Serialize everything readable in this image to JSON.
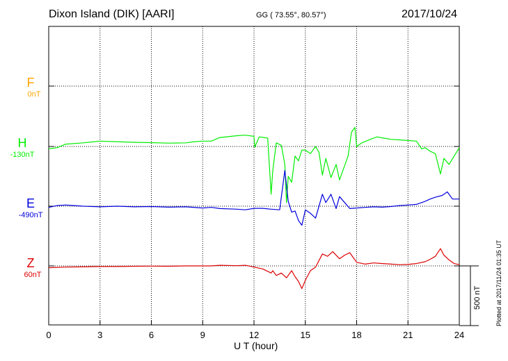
{
  "header": {
    "station": "Dixon Island (DIK)  [AARI]",
    "coords": "GG ( 73.55°,  80.57°)",
    "date": "2017/10/24"
  },
  "footer": "Plotted at 2017/11/24 01:35 UT",
  "chart_data": {
    "type": "line",
    "xlabel": "U T (hour)",
    "xlim": [
      0,
      24
    ],
    "xticks": [
      "0",
      "3",
      "6",
      "9",
      "12",
      "15",
      "18",
      "21",
      "24"
    ],
    "scale_bar_label": "500 nT",
    "grid": true,
    "series": [
      {
        "name": "F",
        "baseline": "0nT",
        "color": "#ffa500",
        "points": []
      },
      {
        "name": "H",
        "baseline": "-130nT",
        "color": "#00ee00",
        "points": [
          [
            0,
            -20
          ],
          [
            0.5,
            -10
          ],
          [
            1,
            20
          ],
          [
            2,
            30
          ],
          [
            3,
            45
          ],
          [
            4,
            40
          ],
          [
            5,
            35
          ],
          [
            6,
            32
          ],
          [
            7,
            28
          ],
          [
            8,
            30
          ],
          [
            8.5,
            40
          ],
          [
            9,
            45
          ],
          [
            9.5,
            45
          ],
          [
            10,
            75
          ],
          [
            11,
            90
          ],
          [
            11.5,
            95
          ],
          [
            12,
            85
          ],
          [
            12.05,
            -5
          ],
          [
            12.3,
            80
          ],
          [
            12.6,
            75
          ],
          [
            12.8,
            70
          ],
          [
            13,
            -400
          ],
          [
            13.1,
            -200
          ],
          [
            13.3,
            30
          ],
          [
            13.6,
            10
          ],
          [
            13.8,
            -150
          ],
          [
            13.9,
            -470
          ],
          [
            14.0,
            -250
          ],
          [
            14.2,
            -300
          ],
          [
            14.4,
            -80
          ],
          [
            14.6,
            -120
          ],
          [
            14.8,
            -30
          ],
          [
            15,
            -30
          ],
          [
            15.3,
            -60
          ],
          [
            15.6,
            0
          ],
          [
            15.8,
            -50
          ],
          [
            16.0,
            -240
          ],
          [
            16.2,
            -100
          ],
          [
            16.5,
            -260
          ],
          [
            16.8,
            -150
          ],
          [
            17.0,
            -280
          ],
          [
            17.2,
            -200
          ],
          [
            17.5,
            -80
          ],
          [
            17.7,
            120
          ],
          [
            17.9,
            160
          ],
          [
            18.0,
            0
          ],
          [
            18.3,
            30
          ],
          [
            18.8,
            60
          ],
          [
            19.2,
            80
          ],
          [
            19.6,
            70
          ],
          [
            20.0,
            60
          ],
          [
            20.5,
            55
          ],
          [
            21.0,
            50
          ],
          [
            21.5,
            45
          ],
          [
            21.8,
            -20
          ],
          [
            22.0,
            -10
          ],
          [
            22.3,
            -40
          ],
          [
            22.6,
            -60
          ],
          [
            22.9,
            -230
          ],
          [
            23.1,
            -100
          ],
          [
            23.4,
            -150
          ],
          [
            23.7,
            -80
          ],
          [
            24,
            -10
          ]
        ]
      },
      {
        "name": "E",
        "baseline": "-490nT",
        "color": "#0000dd",
        "points": [
          [
            0,
            -10
          ],
          [
            0.5,
            5
          ],
          [
            1,
            10
          ],
          [
            1.5,
            5
          ],
          [
            2,
            0
          ],
          [
            3,
            -5
          ],
          [
            4,
            0
          ],
          [
            5,
            -5
          ],
          [
            6,
            -3
          ],
          [
            7,
            -8
          ],
          [
            8,
            -5
          ],
          [
            9,
            -15
          ],
          [
            9.5,
            -10
          ],
          [
            10,
            -20
          ],
          [
            11,
            -25
          ],
          [
            11.5,
            -30
          ],
          [
            12,
            -18
          ],
          [
            12.5,
            -18
          ],
          [
            13,
            -25
          ],
          [
            13.5,
            -30
          ],
          [
            13.8,
            300
          ],
          [
            14.0,
            40
          ],
          [
            14.2,
            -50
          ],
          [
            14.4,
            -40
          ],
          [
            14.6,
            -120
          ],
          [
            14.8,
            -160
          ],
          [
            15.0,
            -30
          ],
          [
            15.3,
            -60
          ],
          [
            15.6,
            -100
          ],
          [
            16.0,
            100
          ],
          [
            16.2,
            30
          ],
          [
            16.5,
            100
          ],
          [
            16.8,
            -20
          ],
          [
            17.0,
            80
          ],
          [
            17.3,
            30
          ],
          [
            17.6,
            -20
          ],
          [
            18.0,
            -15
          ],
          [
            18.5,
            -10
          ],
          [
            19.0,
            -5
          ],
          [
            19.5,
            -8
          ],
          [
            20,
            -3
          ],
          [
            20.5,
            5
          ],
          [
            21,
            10
          ],
          [
            21.5,
            15
          ],
          [
            22,
            40
          ],
          [
            22.3,
            60
          ],
          [
            22.6,
            75
          ],
          [
            23.0,
            90
          ],
          [
            23.3,
            120
          ],
          [
            23.6,
            60
          ],
          [
            24,
            60
          ]
        ]
      },
      {
        "name": "Z",
        "baseline": "60nT",
        "color": "#dd0000",
        "points": [
          [
            0,
            -15
          ],
          [
            1,
            -10
          ],
          [
            2,
            -8
          ],
          [
            3,
            -5
          ],
          [
            4,
            -5
          ],
          [
            5,
            -3
          ],
          [
            6,
            -2
          ],
          [
            7,
            -3
          ],
          [
            8,
            0
          ],
          [
            9,
            0
          ],
          [
            9.5,
            0
          ],
          [
            10,
            5
          ],
          [
            11,
            2
          ],
          [
            11.5,
            5
          ],
          [
            12,
            -10
          ],
          [
            12.5,
            -25
          ],
          [
            13,
            -60
          ],
          [
            13.1,
            -40
          ],
          [
            13.3,
            -80
          ],
          [
            13.6,
            -60
          ],
          [
            13.9,
            -100
          ],
          [
            14.2,
            -40
          ],
          [
            14.4,
            -90
          ],
          [
            14.6,
            -130
          ],
          [
            14.8,
            -190
          ],
          [
            15.0,
            -120
          ],
          [
            15.3,
            -40
          ],
          [
            15.6,
            -10
          ],
          [
            16.0,
            100
          ],
          [
            16.3,
            80
          ],
          [
            16.6,
            120
          ],
          [
            17.0,
            60
          ],
          [
            17.3,
            90
          ],
          [
            17.6,
            110
          ],
          [
            18,
            30
          ],
          [
            18.5,
            15
          ],
          [
            19,
            25
          ],
          [
            19.5,
            20
          ],
          [
            20,
            15
          ],
          [
            20.5,
            10
          ],
          [
            21,
            12
          ],
          [
            21.5,
            20
          ],
          [
            22,
            35
          ],
          [
            22.3,
            55
          ],
          [
            22.6,
            80
          ],
          [
            22.9,
            145
          ],
          [
            23.1,
            90
          ],
          [
            23.4,
            50
          ],
          [
            23.7,
            20
          ],
          [
            24,
            10
          ]
        ]
      }
    ]
  }
}
